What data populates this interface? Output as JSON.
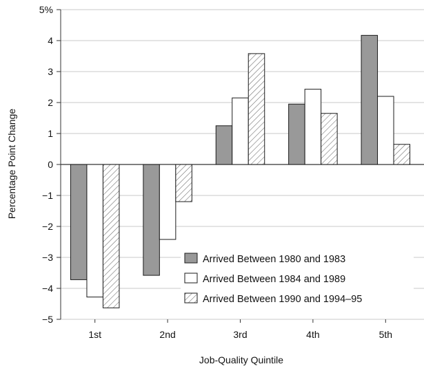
{
  "chart_data": {
    "type": "bar",
    "xlabel": "Job-Quality Quintile",
    "ylabel": "Percentage Point Change",
    "categories": [
      "1st",
      "2nd",
      "3rd",
      "4th",
      "5th"
    ],
    "ylim": [
      -5,
      5
    ],
    "y_ticks": [
      {
        "value": 5,
        "label": "5%"
      },
      {
        "value": 4,
        "label": "4"
      },
      {
        "value": 3,
        "label": "3"
      },
      {
        "value": 2,
        "label": "2"
      },
      {
        "value": 1,
        "label": "1"
      },
      {
        "value": 0,
        "label": "0"
      },
      {
        "value": -1,
        "label": "−1"
      },
      {
        "value": -2,
        "label": "−2"
      },
      {
        "value": -3,
        "label": "−3"
      },
      {
        "value": -4,
        "label": "−4"
      },
      {
        "value": -5,
        "label": "−5"
      }
    ],
    "grid": "horizontal",
    "legend_position": "bottom-right",
    "series": [
      {
        "name": "Arrived Between 1980 and 1983",
        "style": "gray",
        "color": "#999999",
        "values": [
          -3.72,
          -3.58,
          1.25,
          1.95,
          4.17
        ]
      },
      {
        "name": "Arrived Between 1984 and 1989",
        "style": "white",
        "color": "#ffffff",
        "values": [
          -4.28,
          -2.42,
          2.15,
          2.43,
          2.2
        ]
      },
      {
        "name": "Arrived Between 1990 and 1994–95",
        "style": "hatched",
        "color": "#ffffff",
        "values": [
          -4.63,
          -1.2,
          3.58,
          1.65,
          0.65
        ]
      }
    ]
  }
}
